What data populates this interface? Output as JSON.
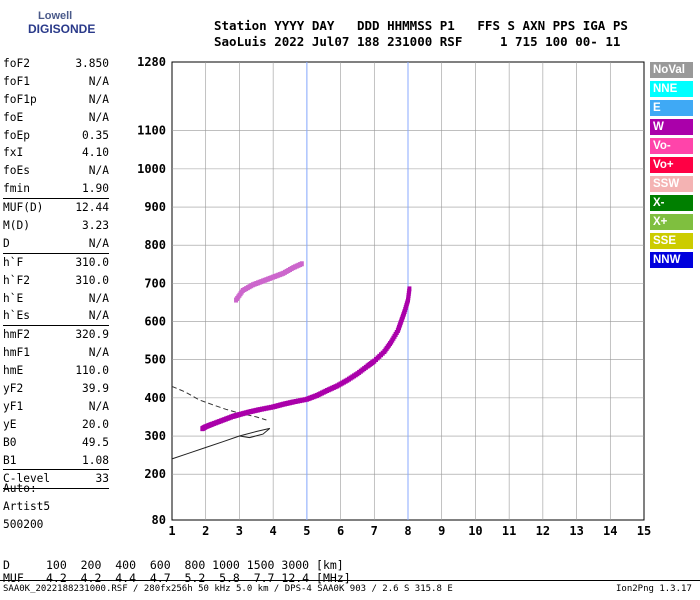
{
  "logo": {
    "line1": "Lowell",
    "line2": "DIGISONDE"
  },
  "header": {
    "line1": "Station YYYY DAY   DDD HHMMSS P1   FFS S AXN PPS IGA PS",
    "line2": "SaoLuis 2022 Jul07 188 231000 RSF     1 715 100 00- 11"
  },
  "params": [
    {
      "label": "foF2",
      "value": "3.850"
    },
    {
      "label": "foF1",
      "value": "N/A"
    },
    {
      "label": "foF1p",
      "value": "N/A"
    },
    {
      "label": "foE",
      "value": "N/A"
    },
    {
      "label": "foEp",
      "value": "0.35"
    },
    {
      "label": "fxI",
      "value": "4.10"
    },
    {
      "label": "foEs",
      "value": "N/A"
    },
    {
      "label": "fmin",
      "value": "1.90",
      "sep": true
    },
    {
      "label": "MUF(D)",
      "value": "12.44"
    },
    {
      "label": "M(D)",
      "value": "3.23"
    },
    {
      "label": "D",
      "value": "N/A",
      "sep": true
    },
    {
      "label": "h`F",
      "value": "310.0"
    },
    {
      "label": "h`F2",
      "value": "310.0"
    },
    {
      "label": "h`E",
      "value": "N/A"
    },
    {
      "label": "h`Es",
      "value": "N/A",
      "sep": true
    },
    {
      "label": "hmF2",
      "value": "320.9"
    },
    {
      "label": "hmF1",
      "value": "N/A"
    },
    {
      "label": "hmE",
      "value": "110.0"
    },
    {
      "label": "yF2",
      "value": "39.9"
    },
    {
      "label": "yF1",
      "value": "N/A"
    },
    {
      "label": "yE",
      "value": "20.0"
    },
    {
      "label": "B0",
      "value": "49.5"
    },
    {
      "label": "B1",
      "value": "1.08",
      "sep": true
    },
    {
      "label": "C-level",
      "value": "33",
      "sep": true
    }
  ],
  "auto": {
    "line1": "Auto:",
    "line2": "Artist5",
    "line3": "500200"
  },
  "legend": [
    {
      "label": "NoVal",
      "color": "#999999"
    },
    {
      "label": "NNE",
      "color": "#00ffff"
    },
    {
      "label": "E",
      "color": "#3fa9f5"
    },
    {
      "label": "W",
      "color": "#aa00aa"
    },
    {
      "label": "Vo-",
      "color": "#ff44aa"
    },
    {
      "label": "Vo+",
      "color": "#ff0044"
    },
    {
      "label": "SSW",
      "color": "#f4b3b3"
    },
    {
      "label": "X-",
      "color": "#007f00"
    },
    {
      "label": "X+",
      "color": "#7fbf3f"
    },
    {
      "label": "SSE",
      "color": "#cccc00"
    },
    {
      "label": "NNW",
      "color": "#0000dd"
    }
  ],
  "muf_table": {
    "row1_label": "D",
    "row1": "100  200  400  600  800 1000 1500 3000 [km]",
    "row2_label": "MUF",
    "row2": "4.2  4.2  4.4  4.7  5.2  5.8  7.7 12.4 [MHz]"
  },
  "footer": {
    "left": "SAA0K_2022188231000.RSF / 280fx256h 50 kHz 5.0 km / DPS-4 SAA0K 903 / 2.6 S 315.8 E",
    "right": "Ion2Png 1.3.17"
  },
  "chart_data": {
    "type": "scatter",
    "xlim": [
      1,
      15
    ],
    "ylim": [
      80,
      1280
    ],
    "x_ticks": [
      1,
      2,
      3,
      4,
      5,
      6,
      7,
      8,
      9,
      10,
      11,
      12,
      13,
      14,
      15
    ],
    "y_ticks": [
      80,
      200,
      300,
      400,
      500,
      600,
      700,
      800,
      900,
      1000,
      1100,
      1280
    ],
    "grid": true,
    "vertical_markers": [
      5.0,
      8.0
    ],
    "trace_main": [
      [
        1.9,
        318
      ],
      [
        2.0,
        323
      ],
      [
        2.2,
        330
      ],
      [
        2.5,
        340
      ],
      [
        2.8,
        350
      ],
      [
        3.0,
        355
      ],
      [
        3.3,
        362
      ],
      [
        3.6,
        368
      ],
      [
        4.0,
        375
      ],
      [
        4.3,
        382
      ],
      [
        4.6,
        388
      ],
      [
        5.0,
        395
      ],
      [
        5.3,
        405
      ],
      [
        5.6,
        418
      ],
      [
        5.9,
        430
      ],
      [
        6.2,
        445
      ],
      [
        6.5,
        462
      ],
      [
        6.8,
        482
      ],
      [
        7.0,
        495
      ],
      [
        7.3,
        520
      ],
      [
        7.5,
        545
      ],
      [
        7.7,
        575
      ],
      [
        7.8,
        600
      ],
      [
        7.9,
        625
      ],
      [
        8.0,
        655
      ],
      [
        8.05,
        690
      ]
    ],
    "trace_x_echo": [
      [
        2.9,
        655
      ],
      [
        3.1,
        680
      ],
      [
        3.4,
        695
      ],
      [
        3.7,
        705
      ],
      [
        4.0,
        715
      ],
      [
        4.3,
        725
      ],
      [
        4.6,
        740
      ],
      [
        4.9,
        752
      ]
    ],
    "profile_dashed": [
      [
        1.0,
        430
      ],
      [
        1.4,
        415
      ],
      [
        1.8,
        395
      ],
      [
        2.2,
        382
      ],
      [
        2.6,
        370
      ],
      [
        3.0,
        360
      ],
      [
        3.5,
        350
      ],
      [
        3.8,
        342
      ]
    ],
    "profile_solid": [
      [
        1.0,
        240
      ],
      [
        1.5,
        255
      ],
      [
        2.0,
        270
      ],
      [
        2.5,
        285
      ],
      [
        3.0,
        300
      ],
      [
        3.5,
        312
      ],
      [
        3.9,
        320
      ],
      [
        3.7,
        305
      ],
      [
        3.3,
        296
      ],
      [
        3.0,
        300
      ]
    ]
  }
}
